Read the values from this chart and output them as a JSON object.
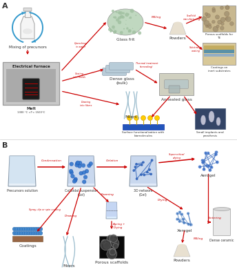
{
  "bg_color": "#ffffff",
  "arrow_color": "#cc0000",
  "blue_color": "#3399cc",
  "text_dark": "#333333",
  "text_red": "#cc0000",
  "panel_A": "A",
  "panel_B": "B",
  "mixing_label": "Mixing of precursors",
  "furnace_label": "Electrical furnace",
  "melt_label": "Melt",
  "melt_temp": "1300 °C <T< 1500°C",
  "glass_frit_label": "Glass frit",
  "dense_glass_label": "Dense glass\n(bulk)",
  "fibers_a_label": "Fibers",
  "powders_a_label": "Powders",
  "annealed_label": "Annealed glass",
  "scaffold_label": "Porous scaffolds for\nTE",
  "coatings_a_label": "Coatings on\ninert substrates",
  "surface_label": "Surface functionalization with\nbiomolecules",
  "implants_label": "Small implants and\nprosthesis",
  "quenching_label": "Quenching\nin water",
  "casting_label": "Casting\ninto molds",
  "drawing_a_label": "Drawing\ninto fibers",
  "milling_a_label": "Milling",
  "scaffold_mfg_label": "Scaffold\nmanufacturing",
  "substrate_label": "Substrates\ncoating",
  "thermal_label": "Thermal treatment\n(annealing)",
  "precursors_label": "Precursors solution",
  "colloid_label": "Colloidal suspension\n(Sol)",
  "network_label": "3D network\n(Gel)",
  "aerogel_label": "Aerogel",
  "xerogel_label": "Xerogel",
  "powders_b_label": "Powders",
  "dense_ceramic_label": "Dense ceramic",
  "coatings_b_label": "Coatings",
  "fibers_b_label": "Fibers",
  "porous_label": "Porous scaffolds",
  "condensation_label": "Condensation",
  "gelation_label": "Gelation",
  "supercritical_label": "Supercritical\ndrying",
  "drying_label": "Drying",
  "sintering_label": "Sintering",
  "milling_b_label": "Milling",
  "spray_label": "Spray, dip or spin coating",
  "drawing_b_label": "Drawing",
  "foaming_label": "Foaming",
  "ageing_label": "Ageing +\nDrying"
}
